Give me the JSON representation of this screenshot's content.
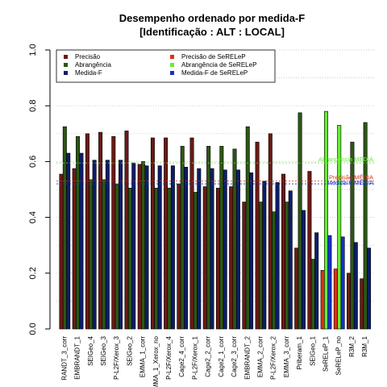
{
  "chart_data": {
    "type": "bar",
    "title": "Desempenho ordenado por medida-F",
    "subtitle": "[Identificação : ALT : LOCAL]",
    "xlabel": "",
    "ylabel": "",
    "ylim": [
      0,
      1
    ],
    "yticks": [
      0.0,
      0.2,
      0.4,
      0.6,
      0.8,
      1.0
    ],
    "ytick_labels": [
      "0.0",
      "0.2",
      "0.4",
      "0.6",
      "0.8",
      "1.0"
    ],
    "grid": true,
    "legend_position": "top",
    "categories": [
      "RANDT_3_corr",
      "EMBRANDT_1",
      "SEIGeo_4",
      "SEIGeo_3",
      "P-L2F/Xerox_3",
      "SEIGeo_2",
      "EMMA_1_corr",
      "EMMA_1_Xerox_no",
      "P-L2F/Xerox_4",
      "Cage2_4_corr",
      "P-L2F/Xerox_1",
      "Cage2_2_corr",
      "Cage2_1_corr",
      "Cage2_3_corr",
      "EMBRANDT_2",
      "EMMA_2_corr",
      "P-L2F/Xerox_2",
      "EMMA_3_corr",
      "Priberam_1",
      "SEIGeo_1",
      "SeRELeP_1",
      "SeRELeP_no",
      "R3M_2",
      "R3M_1"
    ],
    "highlight_categories": [
      "SeRELeP_1",
      "SeRELeP_no"
    ],
    "series": [
      {
        "name": "Precisão",
        "color": "#6B1A14",
        "values": [
          0.555,
          0.575,
          0.7,
          0.705,
          0.69,
          0.71,
          0.59,
          0.685,
          0.685,
          0.52,
          0.685,
          0.51,
          0.505,
          0.51,
          0.455,
          0.67,
          0.7,
          0.555,
          0.29,
          0.565,
          0.21,
          0.215,
          0.2,
          0.18
        ]
      },
      {
        "name": "Abrangência",
        "color": "#2C5714",
        "values": [
          0.725,
          0.69,
          0.535,
          0.535,
          0.52,
          0.505,
          0.6,
          0.505,
          0.505,
          0.655,
          0.49,
          0.655,
          0.655,
          0.645,
          0.725,
          0.455,
          0.42,
          0.455,
          0.775,
          0.25,
          0.78,
          0.73,
          0.67,
          0.74
        ]
      },
      {
        "name": "Medida-F",
        "color": "#0B1E6B",
        "values": [
          0.63,
          0.63,
          0.605,
          0.605,
          0.605,
          0.595,
          0.585,
          0.585,
          0.585,
          0.58,
          0.575,
          0.575,
          0.57,
          0.57,
          0.56,
          0.53,
          0.525,
          0.495,
          0.425,
          0.345,
          0.335,
          0.33,
          0.31,
          0.29
        ]
      }
    ],
    "highlight_series": [
      {
        "name": "Precisão  de  SeRELeP",
        "color": "#E03010"
      },
      {
        "name": "Abrangência  de  SeRELeP",
        "color": "#66EE33"
      },
      {
        "name": "Medida-F  de  SeRELeP",
        "color": "#1530D0"
      }
    ],
    "reference_lines": [
      {
        "label": "Abrangência MÉDIA",
        "value": 0.595,
        "color": "#66EE33"
      },
      {
        "label": "Precisão MÉDIA",
        "value": 0.53,
        "color": "#E03010"
      },
      {
        "label": "Medida-F MÉDIA",
        "value": 0.52,
        "color": "#1530D0"
      }
    ]
  }
}
